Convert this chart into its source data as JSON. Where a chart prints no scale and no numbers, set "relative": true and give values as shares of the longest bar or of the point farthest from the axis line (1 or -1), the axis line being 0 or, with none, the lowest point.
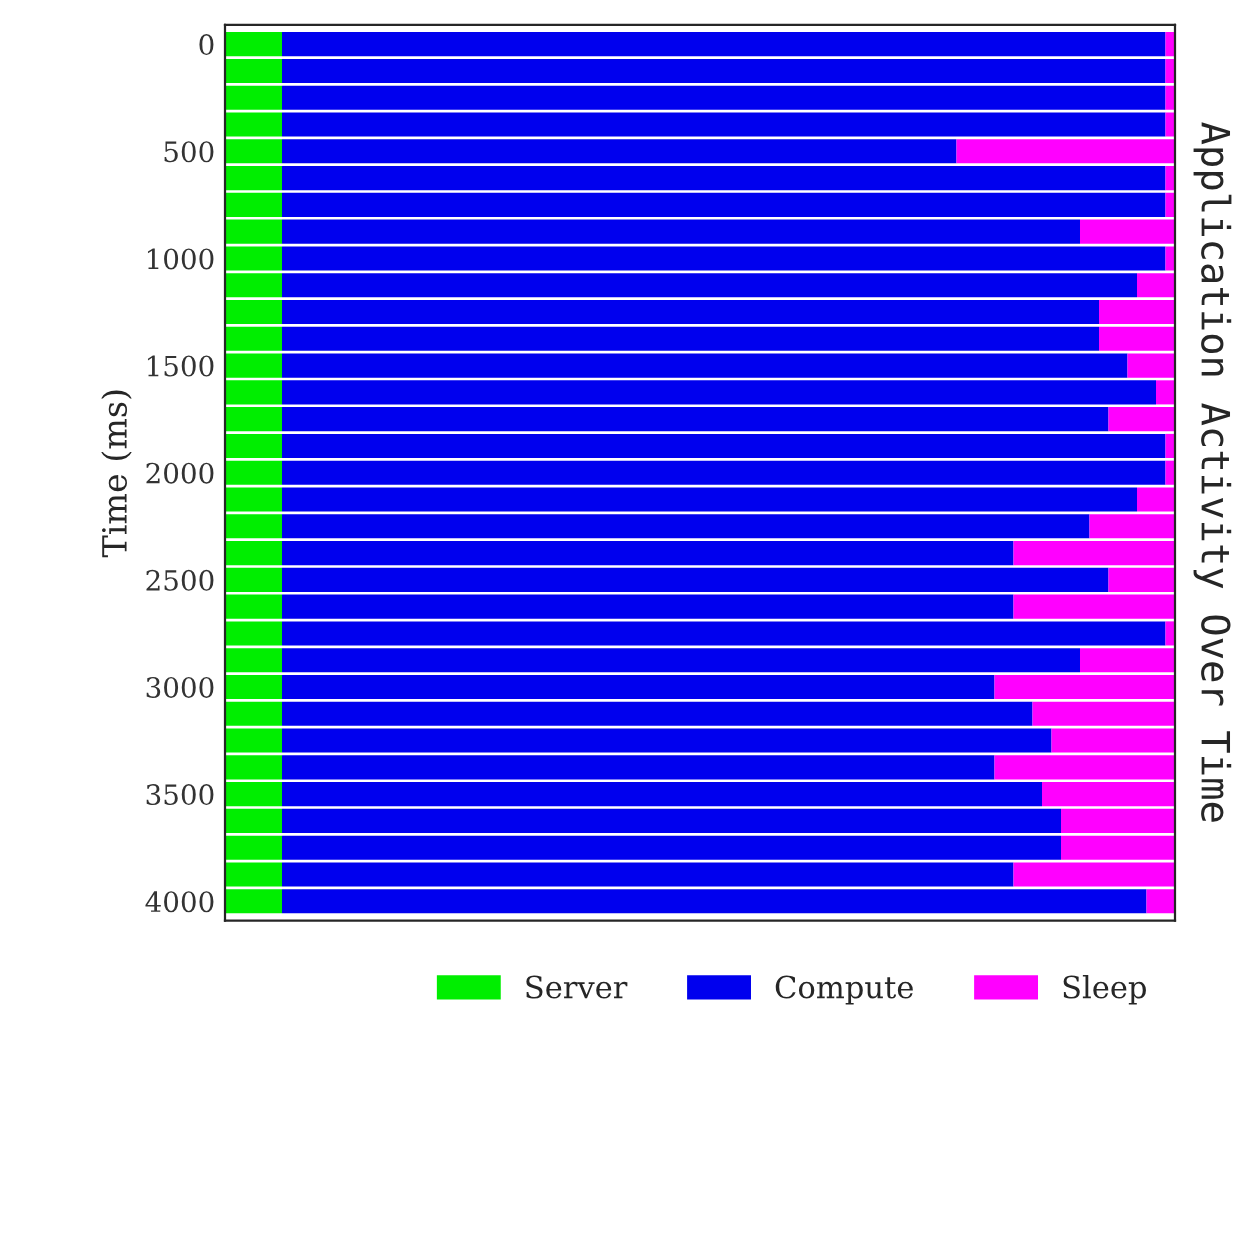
{
  "chart_data": {
    "type": "bar",
    "orientation": "horizontal",
    "stacked": true,
    "relative": true,
    "title": "Application Activity Over Time",
    "ylabel": "Time (ms)",
    "x": [
      0,
      125,
      250,
      375,
      500,
      625,
      750,
      875,
      1000,
      1125,
      1250,
      1375,
      1500,
      1625,
      1750,
      1875,
      2000,
      2125,
      2250,
      2375,
      2500,
      2625,
      2750,
      2875,
      3000,
      3125,
      3250,
      3375,
      3500,
      3625,
      3750,
      3875,
      4000
    ],
    "ylim": [
      4090,
      -90
    ],
    "yticks": [
      0,
      500,
      1000,
      1500,
      2000,
      2500,
      3000,
      3500,
      4000
    ],
    "legend": "bottom",
    "grid": false,
    "series": [
      {
        "name": "Server",
        "color": "#00ee00",
        "values": [
          0.06,
          0.06,
          0.06,
          0.06,
          0.06,
          0.06,
          0.06,
          0.06,
          0.06,
          0.06,
          0.06,
          0.06,
          0.06,
          0.06,
          0.06,
          0.06,
          0.06,
          0.06,
          0.06,
          0.06,
          0.06,
          0.06,
          0.06,
          0.06,
          0.06,
          0.06,
          0.06,
          0.06,
          0.06,
          0.06,
          0.06,
          0.06,
          0.06
        ]
      },
      {
        "name": "Compute",
        "color": "#0000ee",
        "values": [
          0.93,
          0.93,
          0.93,
          0.93,
          0.71,
          0.93,
          0.93,
          0.84,
          0.93,
          0.9,
          0.86,
          0.86,
          0.89,
          0.92,
          0.87,
          0.93,
          0.93,
          0.9,
          0.85,
          0.77,
          0.87,
          0.77,
          0.93,
          0.84,
          0.75,
          0.79,
          0.81,
          0.75,
          0.8,
          0.82,
          0.82,
          0.77,
          0.91
        ]
      },
      {
        "name": "Sleep",
        "color": "#ff00ff",
        "values": [
          0.01,
          0.01,
          0.01,
          0.01,
          0.23,
          0.01,
          0.01,
          0.1,
          0.01,
          0.04,
          0.08,
          0.08,
          0.05,
          0.02,
          0.07,
          0.01,
          0.01,
          0.04,
          0.09,
          0.17,
          0.07,
          0.17,
          0.01,
          0.1,
          0.19,
          0.15,
          0.13,
          0.19,
          0.14,
          0.12,
          0.12,
          0.17,
          0.03
        ]
      }
    ]
  }
}
